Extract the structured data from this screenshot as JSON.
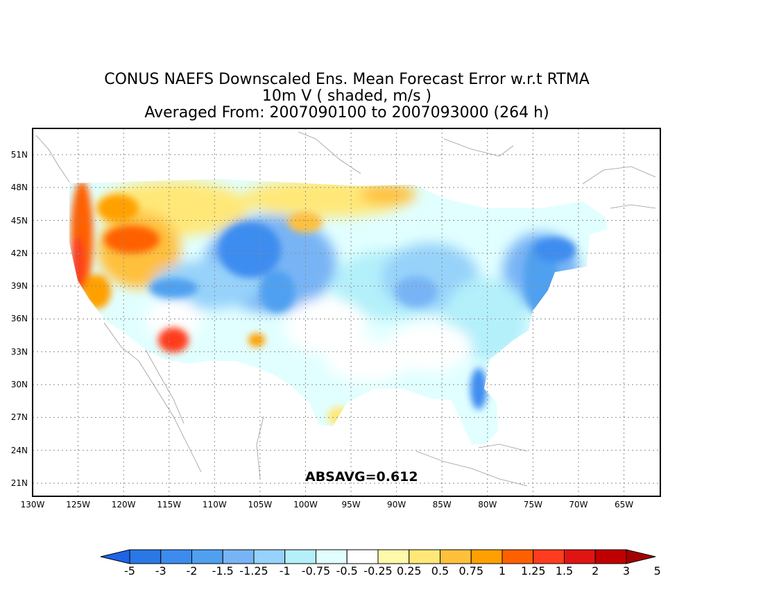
{
  "title": {
    "line1": "CONUS NAEFS Downscaled Ens. Mean Forecast Error w.r.t RTMA",
    "line2": "10m V ( shaded, m/s )",
    "line3": "Averaged From: 2007090100 to 2007093000 (264 h)"
  },
  "annotation": "ABSAVG=0.612",
  "axes": {
    "lat_labels": [
      "51N",
      "48N",
      "45N",
      "42N",
      "39N",
      "36N",
      "33N",
      "30N",
      "27N",
      "24N",
      "21N"
    ],
    "lat_values": [
      51,
      48,
      45,
      42,
      39,
      36,
      33,
      30,
      27,
      24,
      21
    ],
    "lon_labels": [
      "130W",
      "125W",
      "120W",
      "115W",
      "110W",
      "105W",
      "100W",
      "95W",
      "90W",
      "85W",
      "80W",
      "75W",
      "70W",
      "65W"
    ],
    "lon_values": [
      -130,
      -125,
      -120,
      -115,
      -110,
      -105,
      -100,
      -95,
      -90,
      -85,
      -80,
      -75,
      -70,
      -65
    ],
    "lat_range": [
      19.8,
      53.4
    ],
    "lon_range": [
      -130,
      -61
    ],
    "gridlines": "dotted"
  },
  "colorbar": {
    "labels": [
      "-5",
      "-3",
      "-2",
      "-1.5",
      "-1.25",
      "-1",
      "-0.75",
      "-0.5",
      "-0.25",
      "0.25",
      "0.5",
      "0.75",
      "1",
      "1.25",
      "1.5",
      "2",
      "3",
      "5"
    ],
    "colors": [
      "#1e64e6",
      "#2878e6",
      "#3c8cf0",
      "#50a0f0",
      "#78b4f5",
      "#96d2fa",
      "#b4f0fa",
      "#e1ffff",
      "#ffffff",
      "#fffaaa",
      "#ffe878",
      "#ffc03c",
      "#ffa000",
      "#ff6000",
      "#ff3c1e",
      "#e11414",
      "#c00000",
      "#a50000"
    ]
  },
  "colors": {
    "frame": "#000000",
    "grid": "#8c8c8c",
    "coast": "#9a9a9a"
  }
}
